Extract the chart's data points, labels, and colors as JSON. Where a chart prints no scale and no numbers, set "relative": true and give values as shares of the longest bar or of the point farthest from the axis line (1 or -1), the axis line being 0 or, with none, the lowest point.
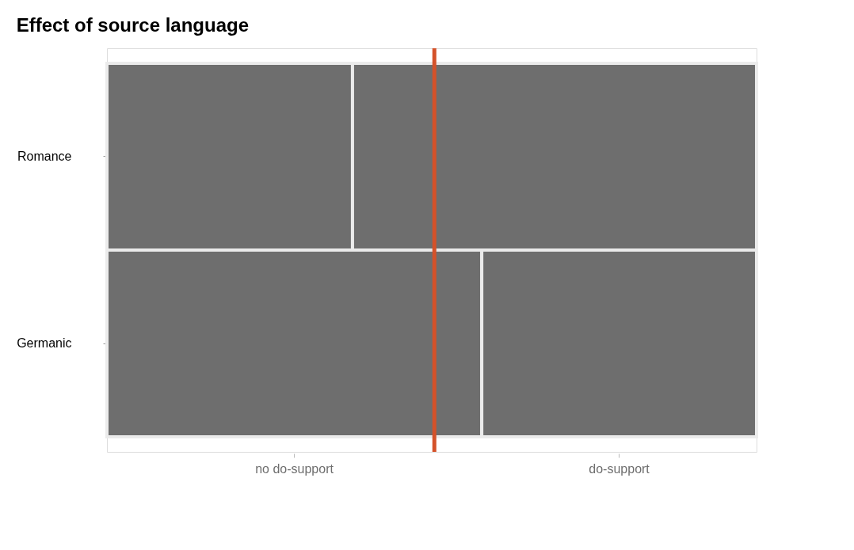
{
  "chart_data": {
    "type": "bar",
    "title": "Effect of source language",
    "orientation": "horizontal",
    "stacked": true,
    "relative": true,
    "categories": [
      "Romance",
      "Germanic"
    ],
    "series": [
      {
        "name": "no do-support",
        "color": "#6e6e6e",
        "values": [
          0.378,
          0.577
        ]
      },
      {
        "name": "do-support",
        "color": "#6e6e6e",
        "values": [
          0.622,
          0.423
        ]
      }
    ],
    "ref_lines": [
      {
        "axis": "x",
        "value": 0.504,
        "color": "#d4522a"
      }
    ],
    "grid": false,
    "legend": false
  }
}
